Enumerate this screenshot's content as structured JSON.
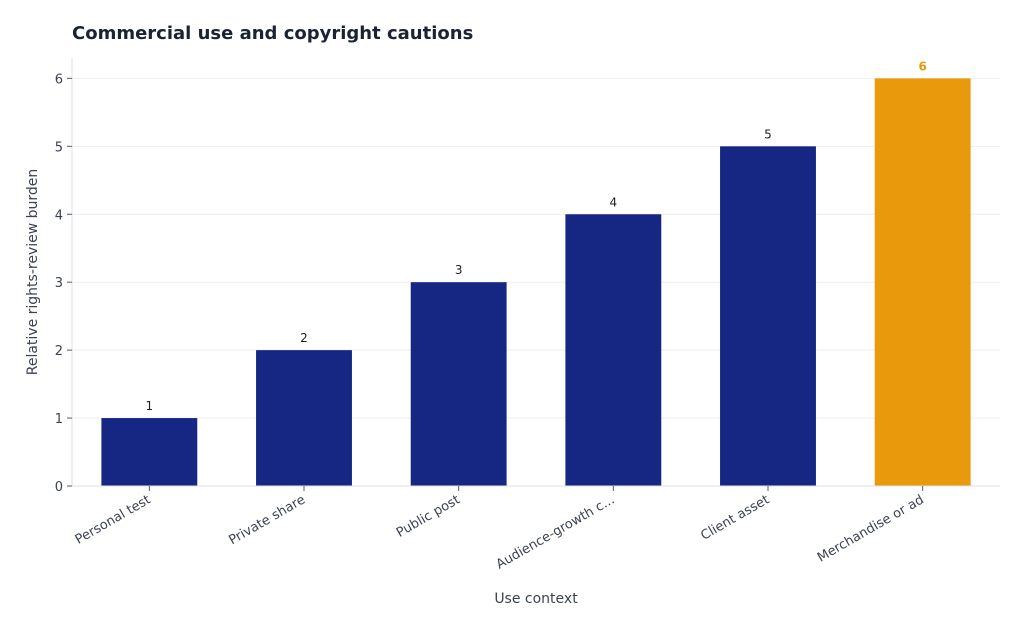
{
  "chart_data": {
    "type": "bar",
    "title": "Commercial use and copyright cautions",
    "xlabel": "Use context",
    "ylabel": "Relative rights-review burden",
    "categories": [
      "Personal test",
      "Private share",
      "Public post",
      "Audience-growth c...",
      "Client asset",
      "Merchandise or ad"
    ],
    "values": [
      1,
      2,
      3,
      4,
      5,
      6
    ],
    "ylim": [
      0,
      6.3
    ],
    "yticks": [
      0,
      1,
      2,
      3,
      4,
      5,
      6
    ],
    "grid": true,
    "highlight_index": 5,
    "colors": {
      "bar": "#162783",
      "highlight": "#e89a0c",
      "title": "#1b2233"
    }
  }
}
